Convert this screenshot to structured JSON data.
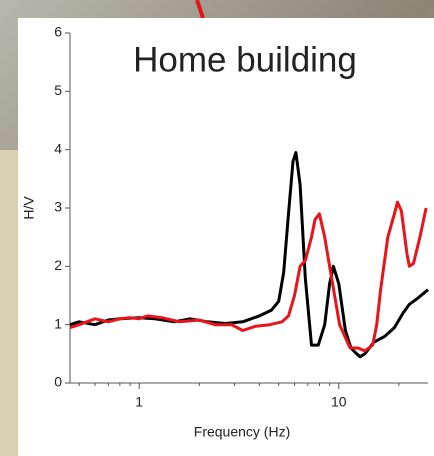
{
  "chart_data": {
    "type": "line",
    "title": "Home building",
    "xlabel": "Frequency (Hz)",
    "ylabel": "H/V",
    "xscale": "log",
    "xlim": [
      0.45,
      28
    ],
    "ylim": [
      0,
      6
    ],
    "xticks": [
      1,
      10
    ],
    "xminor_ticks": [
      0.5,
      0.6,
      0.7,
      0.8,
      0.9,
      2,
      3,
      4,
      5,
      6,
      7,
      8,
      9,
      20
    ],
    "yticks": [
      0,
      1,
      2,
      3,
      4,
      5,
      6
    ],
    "series": [
      {
        "name": "black",
        "color": "#000000",
        "x": [
          0.45,
          0.5,
          0.6,
          0.7,
          0.8,
          1.0,
          1.2,
          1.5,
          1.8,
          2.2,
          2.7,
          3.3,
          4.0,
          4.6,
          5.0,
          5.3,
          5.6,
          5.9,
          6.1,
          6.4,
          6.8,
          7.3,
          7.9,
          8.5,
          9.0,
          9.4,
          10.0,
          10.8,
          11.5,
          12.3,
          12.8,
          13.5,
          15,
          17,
          19,
          21,
          22.6,
          24.8,
          28
        ],
        "values": [
          1.0,
          1.05,
          1.0,
          1.08,
          1.1,
          1.12,
          1.1,
          1.05,
          1.1,
          1.05,
          1.02,
          1.05,
          1.15,
          1.25,
          1.4,
          1.9,
          2.9,
          3.8,
          3.95,
          3.4,
          1.8,
          0.65,
          0.65,
          1.0,
          1.7,
          2.0,
          1.7,
          0.9,
          0.6,
          0.5,
          0.45,
          0.5,
          0.7,
          0.8,
          0.95,
          1.2,
          1.35,
          1.45,
          1.6
        ]
      },
      {
        "name": "red",
        "color": "#e8141b",
        "x": [
          0.45,
          0.5,
          0.6,
          0.7,
          0.8,
          0.9,
          1.0,
          1.1,
          1.3,
          1.6,
          2.0,
          2.4,
          2.9,
          3.3,
          3.8,
          4.5,
          5.2,
          5.6,
          6.0,
          6.4,
          6.8,
          7.3,
          7.6,
          8.0,
          8.5,
          9.0,
          10.1,
          11.4,
          12.5,
          13.5,
          14.8,
          15.5,
          16.2,
          17.6,
          19.0,
          19.7,
          20.6,
          22.0,
          22.6,
          23.7,
          25.5,
          27.4
        ],
        "values": [
          0.95,
          1.0,
          1.1,
          1.05,
          1.1,
          1.12,
          1.1,
          1.15,
          1.12,
          1.05,
          1.08,
          1.0,
          1.0,
          0.9,
          0.97,
          1.0,
          1.05,
          1.15,
          1.5,
          2.0,
          2.1,
          2.5,
          2.8,
          2.9,
          2.5,
          2.0,
          1.0,
          0.6,
          0.6,
          0.55,
          0.65,
          1.0,
          1.6,
          2.5,
          2.9,
          3.1,
          2.95,
          2.2,
          2.0,
          2.05,
          2.5,
          3.0
        ]
      }
    ]
  }
}
